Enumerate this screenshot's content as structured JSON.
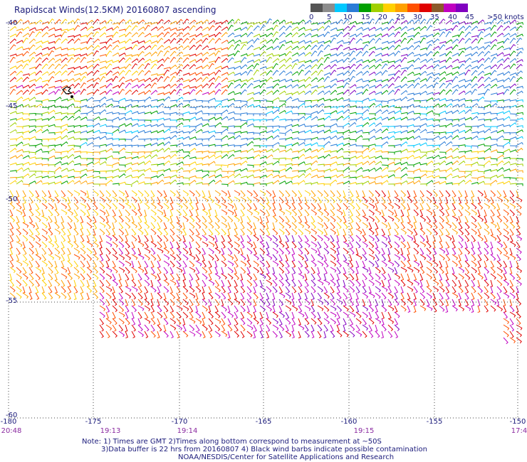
{
  "title": "Rapidscat Winds(12.5KM) 20160807 ascending",
  "scale": {
    "labels": [
      "0",
      "5",
      "10",
      "15",
      "20",
      "25",
      "30",
      "35",
      "40",
      "45",
      ">50 knots"
    ],
    "colors": [
      "#555555",
      "#8c8c8c",
      "#00c8ff",
      "#2a7bd6",
      "#00a000",
      "#a0d000",
      "#ffd000",
      "#ffa000",
      "#ff5000",
      "#e00000",
      "#8b5a2b",
      "#c000c0",
      "#8000c0"
    ]
  },
  "map": {
    "lon_labels": [
      "-180",
      "-175",
      "-170",
      "-165",
      "-160",
      "-155",
      "-150"
    ],
    "lat_labels": [
      "-40",
      "-45",
      "-50",
      "-55",
      "-60"
    ],
    "time_labels": [
      "20:48",
      "19:13",
      "19:14",
      "19:15",
      "17:4"
    ],
    "land_symbol": "island-icon"
  },
  "notes": [
    "Note: 1) Times are GMT 2)Times along bottom correspond to measurement at ~50S",
    "3)Data buffer is 22 hrs from 20160807 4) Black wind barbs indicate possible contamination",
    "NOAA/NESDIS/Center for Satellite Applications and Research"
  ]
}
